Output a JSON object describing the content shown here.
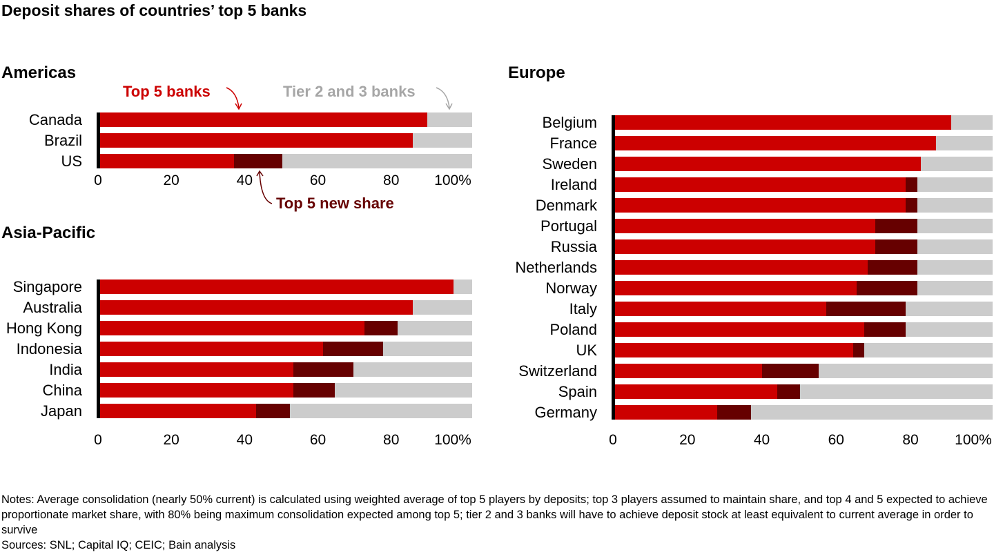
{
  "title": "Deposit shares of countries’ top 5 banks",
  "annotations": {
    "top5": "Top 5 banks",
    "tier23": "Tier 2 and 3 banks",
    "newshare": "Top 5 new share"
  },
  "colors": {
    "top5": "#cc0000",
    "new_share": "#660000",
    "tier23": "#cccccc"
  },
  "notes": "Notes: Average consolidation (nearly 50% current) is calculated using weighted average of top 5 players by deposits; top 3 players assumed to maintain share, and top 4 and 5 expected to achieve proportionate market share, with 80% being maximum consolidation expected among top 5; tier 2 and 3 banks will have to achieve deposit stock at least equivalent to current average in order to survive",
  "sources": "Sources: SNL; Capital IQ; CEIC; Bain analysis",
  "chart_data": [
    {
      "type": "bar",
      "orientation": "horizontal",
      "stacked": true,
      "title": "Americas",
      "xlim": [
        0,
        100
      ],
      "ticks": [
        "0",
        "20",
        "40",
        "60",
        "80",
        "100%"
      ],
      "categories": [
        "Canada",
        "Brazil",
        "US"
      ],
      "series": [
        {
          "name": "Top 5 banks",
          "values": [
            88,
            84,
            36
          ]
        },
        {
          "name": "Top 5 new share",
          "values": [
            0,
            0,
            13
          ]
        },
        {
          "name": "Tier 2 and 3 banks",
          "values": [
            12,
            16,
            51
          ]
        }
      ]
    },
    {
      "type": "bar",
      "orientation": "horizontal",
      "stacked": true,
      "title": "Asia-Pacific",
      "xlim": [
        0,
        100
      ],
      "ticks": [
        "0",
        "20",
        "40",
        "60",
        "80",
        "100%"
      ],
      "categories": [
        "Singapore",
        "Australia",
        "Hong Kong",
        "Indonesia",
        "India",
        "China",
        "Japan"
      ],
      "series": [
        {
          "name": "Top 5 banks",
          "values": [
            95,
            84,
            71,
            60,
            52,
            52,
            42
          ]
        },
        {
          "name": "Top 5 new share",
          "values": [
            0,
            0,
            9,
            16,
            16,
            11,
            9
          ]
        },
        {
          "name": "Tier 2 and 3 banks",
          "values": [
            5,
            16,
            20,
            24,
            32,
            37,
            49
          ]
        }
      ]
    },
    {
      "type": "bar",
      "orientation": "horizontal",
      "stacked": true,
      "title": "Europe",
      "xlim": [
        0,
        100
      ],
      "ticks": [
        "0",
        "20",
        "40",
        "60",
        "80",
        "100%"
      ],
      "categories": [
        "Belgium",
        "France",
        "Sweden",
        "Ireland",
        "Denmark",
        "Portugal",
        "Russia",
        "Netherlands",
        "Norway",
        "Italy",
        "Poland",
        "UK",
        "Switzerland",
        "Spain",
        "Germany"
      ],
      "series": [
        {
          "name": "Top 5 banks",
          "values": [
            89,
            85,
            81,
            77,
            77,
            69,
            69,
            67,
            64,
            56,
            66,
            63,
            39,
            43,
            27
          ]
        },
        {
          "name": "Top 5 new share",
          "values": [
            0,
            0,
            0,
            3,
            3,
            11,
            11,
            13,
            16,
            21,
            11,
            3,
            15,
            6,
            9
          ]
        },
        {
          "name": "Tier 2 and 3 banks",
          "values": [
            11,
            15,
            19,
            20,
            20,
            20,
            20,
            20,
            20,
            23,
            23,
            34,
            46,
            51,
            64
          ]
        }
      ]
    }
  ]
}
